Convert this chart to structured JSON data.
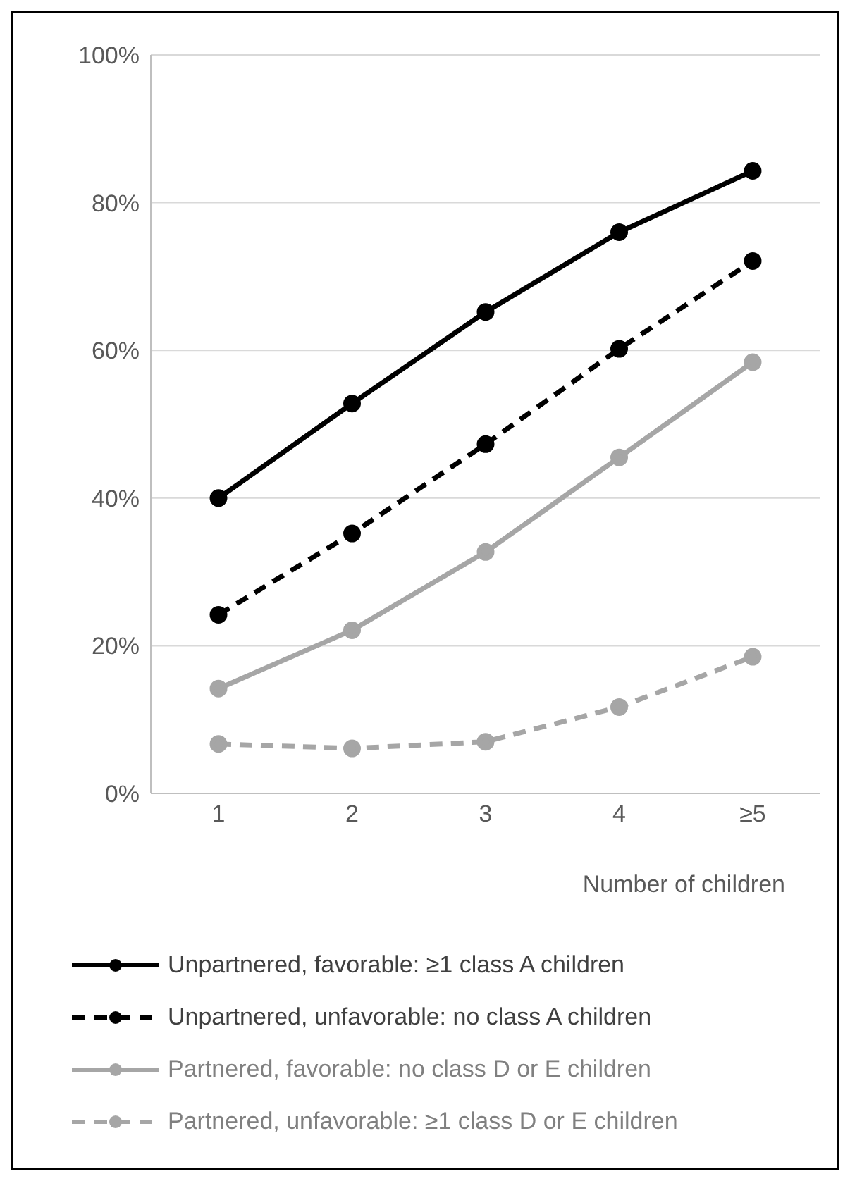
{
  "chart_data": {
    "type": "line",
    "xlabel": "Number of children",
    "categories": [
      "1",
      "2",
      "3",
      "4",
      "≥5"
    ],
    "series": [
      {
        "name": "Unpartnered, favorable: ≥1 class A children",
        "color": "#000000",
        "line_style": "solid",
        "values": [
          40,
          52.8,
          65.2,
          76,
          84.3
        ]
      },
      {
        "name": "Unpartnered, unfavorable: no class A children",
        "color": "#000000",
        "line_style": "dashed",
        "values": [
          24.2,
          35.2,
          47.3,
          60.2,
          72.1
        ]
      },
      {
        "name": "Partnered, favorable: no class D or E children",
        "color": "#a6a6a6",
        "line_style": "solid",
        "values": [
          14.2,
          22.1,
          32.7,
          45.5,
          58.4
        ]
      },
      {
        "name": "Partnered, unfavorable: ≥1 class D or E children",
        "color": "#a6a6a6",
        "line_style": "dashed",
        "values": [
          6.7,
          6.1,
          7,
          11.7,
          18.5
        ]
      }
    ],
    "ylim": [
      0,
      100
    ],
    "yticks": [
      {
        "value": 0,
        "label": "0%"
      },
      {
        "value": 20,
        "label": "20%"
      },
      {
        "value": 40,
        "label": "40%"
      },
      {
        "value": 60,
        "label": "60%"
      },
      {
        "value": 80,
        "label": "80%"
      },
      {
        "value": 100,
        "label": "100%"
      }
    ],
    "grid": "y",
    "legend": "bottom",
    "marker": "circle"
  }
}
